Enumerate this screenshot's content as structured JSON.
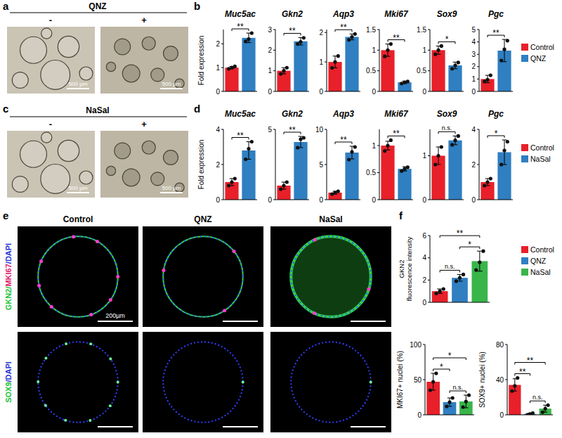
{
  "chart_data": [
    {
      "type": "bar",
      "title": "Muc5ac",
      "ylabel": "Fold expression",
      "categories": [
        "Control",
        "QNZ"
      ],
      "colors": [
        "#e8202a",
        "#2f7fc1"
      ],
      "values": [
        1.0,
        2.25
      ],
      "errors": [
        0.05,
        0.2
      ],
      "points": [
        [
          0.95,
          1.0,
          1.05
        ],
        [
          2.1,
          2.2,
          2.45
        ]
      ],
      "ylim": [
        0,
        2.6
      ],
      "yticks": [
        0,
        1,
        2
      ],
      "tick_labels": "y",
      "annotations": [
        {
          "text": "**",
          "from": "Control",
          "to": "QNZ"
        }
      ]
    },
    {
      "type": "bar",
      "title": "Gkn2",
      "categories": [
        "Control",
        "QNZ"
      ],
      "colors": [
        "#e8202a",
        "#2f7fc1"
      ],
      "values": [
        1.0,
        2.43
      ],
      "errors": [
        0.15,
        0.18
      ],
      "points": [
        [
          0.85,
          1.0,
          1.15
        ],
        [
          2.3,
          2.4,
          2.6
        ]
      ],
      "ylim": [
        0,
        3
      ],
      "yticks": [
        0,
        1,
        2,
        3
      ],
      "tick_labels": "y",
      "annotations": [
        {
          "text": "**",
          "from": "Control",
          "to": "QNZ"
        }
      ]
    },
    {
      "type": "bar",
      "title": "Aqp3",
      "categories": [
        "Control",
        "QNZ"
      ],
      "colors": [
        "#e8202a",
        "#2f7fc1"
      ],
      "values": [
        1.0,
        1.85
      ],
      "errors": [
        0.2,
        0.1
      ],
      "points": [
        [
          0.8,
          1.0,
          1.2
        ],
        [
          1.75,
          1.85,
          1.95
        ]
      ],
      "ylim": [
        0,
        2.1
      ],
      "yticks": [
        0,
        1,
        2
      ],
      "tick_labels": "y",
      "annotations": [
        {
          "text": "**",
          "from": "Control",
          "to": "QNZ"
        }
      ]
    },
    {
      "type": "bar",
      "title": "Mki67",
      "categories": [
        "Control",
        "QNZ"
      ],
      "colors": [
        "#e8202a",
        "#2f7fc1"
      ],
      "values": [
        1.0,
        0.22
      ],
      "errors": [
        0.15,
        0.03
      ],
      "points": [
        [
          0.85,
          1.0,
          1.15
        ],
        [
          0.19,
          0.22,
          0.24
        ]
      ],
      "ylim": [
        0,
        1.5
      ],
      "yticks": [
        0,
        0.5,
        1,
        1.5
      ],
      "tick_labels": "y",
      "annotations": [
        {
          "text": "**",
          "from": "Control",
          "to": "QNZ"
        }
      ]
    },
    {
      "type": "bar",
      "title": "Sox9",
      "categories": [
        "Control",
        "QNZ"
      ],
      "colors": [
        "#e8202a",
        "#2f7fc1"
      ],
      "values": [
        1.0,
        0.63
      ],
      "errors": [
        0.1,
        0.08
      ],
      "points": [
        [
          0.9,
          1.0,
          1.1
        ],
        [
          0.55,
          0.63,
          0.7
        ]
      ],
      "ylim": [
        0,
        1.5
      ],
      "yticks": [
        0,
        0.5,
        1,
        1.5
      ],
      "tick_labels": "y",
      "annotations": [
        {
          "text": "*",
          "from": "Control",
          "to": "QNZ"
        }
      ]
    },
    {
      "type": "bar",
      "title": "Pgc",
      "categories": [
        "Control",
        "QNZ"
      ],
      "colors": [
        "#e8202a",
        "#2f7fc1"
      ],
      "values": [
        1.0,
        3.3
      ],
      "errors": [
        0.3,
        0.9
      ],
      "points": [
        [
          0.8,
          0.95,
          1.3
        ],
        [
          2.5,
          3.4,
          4.1
        ]
      ],
      "ylim": [
        0,
        5
      ],
      "yticks": [
        0,
        1,
        2,
        3,
        4,
        5
      ],
      "tick_labels": "y",
      "legend": "right",
      "annotations": [
        {
          "text": "**",
          "from": "Control",
          "to": "QNZ"
        }
      ]
    },
    {
      "type": "bar",
      "title": "Muc5ac",
      "ylabel": "Fold expression",
      "categories": [
        "Control",
        "NaSal"
      ],
      "colors": [
        "#e8202a",
        "#2f7fc1"
      ],
      "values": [
        1.0,
        2.8
      ],
      "errors": [
        0.2,
        0.5
      ],
      "points": [
        [
          0.8,
          1.0,
          1.2
        ],
        [
          2.3,
          2.9,
          3.3
        ]
      ],
      "ylim": [
        0,
        4
      ],
      "yticks": [
        0,
        2,
        4
      ],
      "tick_labels": "y",
      "annotations": [
        {
          "text": "**",
          "from": "Control",
          "to": "NaSal"
        }
      ]
    },
    {
      "type": "bar",
      "title": "Gkn2",
      "categories": [
        "Control",
        "NaSal"
      ],
      "colors": [
        "#e8202a",
        "#2f7fc1"
      ],
      "values": [
        1.0,
        4.1
      ],
      "errors": [
        0.25,
        0.4
      ],
      "points": [
        [
          0.75,
          1.0,
          1.25
        ],
        [
          3.7,
          4.3,
          4.4
        ]
      ],
      "ylim": [
        0,
        5
      ],
      "yticks": [
        0,
        5
      ],
      "tick_labels": "y",
      "annotations": [
        {
          "text": "**",
          "from": "Control",
          "to": "NaSal"
        }
      ]
    },
    {
      "type": "bar",
      "title": "Aqp3",
      "categories": [
        "Control",
        "NaSal"
      ],
      "colors": [
        "#e8202a",
        "#2f7fc1"
      ],
      "values": [
        1.0,
        6.7
      ],
      "errors": [
        0.2,
        0.9
      ],
      "points": [
        [
          0.8,
          1.0,
          1.2
        ],
        [
          5.7,
          6.8,
          7.5
        ]
      ],
      "ylim": [
        0,
        10
      ],
      "yticks": [
        0,
        5,
        10
      ],
      "tick_labels": "y",
      "annotations": [
        {
          "text": "**",
          "from": "Control",
          "to": "NaSal"
        }
      ]
    },
    {
      "type": "bar",
      "title": "Mki67",
      "categories": [
        "Control",
        "NaSal"
      ],
      "colors": [
        "#e8202a",
        "#2f7fc1"
      ],
      "values": [
        1.0,
        0.57
      ],
      "errors": [
        0.08,
        0.04
      ],
      "points": [
        [
          0.9,
          1.0,
          1.1
        ],
        [
          0.53,
          0.57,
          0.6
        ]
      ],
      "ylim": [
        0,
        1.3
      ],
      "yticks": [
        0,
        0.5,
        1
      ],
      "tick_labels": "y",
      "annotations": [
        {
          "text": "**",
          "from": "Control",
          "to": "NaSal"
        }
      ]
    },
    {
      "type": "bar",
      "title": "Sox9",
      "categories": [
        "Control",
        "NaSal"
      ],
      "colors": [
        "#e8202a",
        "#2f7fc1"
      ],
      "values": [
        1.0,
        1.35
      ],
      "errors": [
        0.2,
        0.1
      ],
      "points": [
        [
          0.8,
          1.0,
          1.2
        ],
        [
          1.25,
          1.35,
          1.45
        ]
      ],
      "ylim": [
        0,
        1.6
      ],
      "yticks": [
        0,
        1
      ],
      "tick_labels": "y",
      "annotations": [
        {
          "text": "n.s.",
          "from": "Control",
          "to": "NaSal"
        }
      ]
    },
    {
      "type": "bar",
      "title": "Pgc",
      "categories": [
        "Control",
        "NaSal"
      ],
      "colors": [
        "#e8202a",
        "#2f7fc1"
      ],
      "values": [
        1.0,
        2.7
      ],
      "errors": [
        0.2,
        0.7
      ],
      "points": [
        [
          0.8,
          1.0,
          1.2
        ],
        [
          2.0,
          2.8,
          3.3
        ]
      ],
      "ylim": [
        0,
        4
      ],
      "yticks": [
        0,
        2,
        4
      ],
      "tick_labels": "y",
      "legend": "right",
      "annotations": [
        {
          "text": "*",
          "from": "Control",
          "to": "NaSal"
        }
      ]
    },
    {
      "type": "bar",
      "ylabel": [
        "GKN2",
        "fluorescence intensity"
      ],
      "categories": [
        "Control",
        "QNZ",
        "NaSal"
      ],
      "colors": [
        "#e8202a",
        "#2f7fc1",
        "#39b54a"
      ],
      "values": [
        1.0,
        2.2,
        3.7
      ],
      "errors": [
        0.2,
        0.3,
        0.9
      ],
      "points": [
        [
          0.8,
          1.0,
          1.2
        ],
        [
          1.9,
          2.2,
          2.5
        ],
        [
          2.9,
          3.6,
          4.6
        ]
      ],
      "ylim": [
        0,
        6
      ],
      "yticks": [
        0,
        2,
        4,
        6
      ],
      "tick_labels": "y",
      "legend": "right",
      "annotations": [
        {
          "text": "n.s.",
          "from": "Control",
          "to": "QNZ"
        },
        {
          "text": "*",
          "from": "QNZ",
          "to": "NaSal"
        },
        {
          "text": "**",
          "from": "Control",
          "to": "NaSal"
        }
      ]
    },
    {
      "type": "bar",
      "ylabel": "MKI67+ nuclei (%)",
      "categories": [
        "Control",
        "QNZ",
        "NaSal"
      ],
      "colors": [
        "#e8202a",
        "#2f7fc1",
        "#39b54a"
      ],
      "values": [
        47,
        18,
        19
      ],
      "errors": [
        12,
        6,
        9
      ],
      "points": [
        [
          35,
          47,
          59
        ],
        [
          12,
          18,
          24
        ],
        [
          11,
          19,
          28
        ]
      ],
      "ylim": [
        0,
        100
      ],
      "yticks": [
        0,
        50,
        100
      ],
      "tick_labels": "y",
      "annotations": [
        {
          "text": "*",
          "from": "Control",
          "to": "QNZ"
        },
        {
          "text": "n.s.",
          "from": "QNZ",
          "to": "NaSal"
        },
        {
          "text": "*",
          "from": "Control",
          "to": "NaSal"
        }
      ]
    },
    {
      "type": "bar",
      "ylabel": "SOX9+ nuclei (%)",
      "categories": [
        "Control",
        "QNZ",
        "NaSal"
      ],
      "colors": [
        "#e8202a",
        "#2f7fc1",
        "#39b54a"
      ],
      "values": [
        34,
        1,
        7
      ],
      "errors": [
        7,
        1,
        4
      ],
      "points": [
        [
          27,
          33,
          42
        ],
        [
          0,
          1,
          2
        ],
        [
          3,
          7,
          11
        ]
      ],
      "ylim": [
        0,
        80
      ],
      "yticks": [
        0,
        40,
        80
      ],
      "tick_labels": "y",
      "annotations": [
        {
          "text": "**",
          "from": "Control",
          "to": "QNZ"
        },
        {
          "text": "n.s.",
          "from": "QNZ",
          "to": "NaSal"
        },
        {
          "text": "**",
          "from": "Control",
          "to": "NaSal"
        }
      ]
    }
  ],
  "figure": {
    "panel_labels": [
      "a",
      "b",
      "c",
      "d",
      "e",
      "f"
    ],
    "brightfield": [
      {
        "title": "QNZ",
        "conditions": [
          "-",
          "+"
        ],
        "scale_bar": "500 µm"
      },
      {
        "title": "NaSal",
        "conditions": [
          "-",
          "+"
        ],
        "scale_bar": "500 µm"
      }
    ],
    "staining": {
      "columns": [
        "Control",
        "QNZ",
        "NaSal"
      ],
      "rows": [
        [
          {
            "text": "GKN2/",
            "color": "#22c33a"
          },
          {
            "text": "MKI67",
            "color": "#e0206a"
          },
          {
            "text": "/DAPI",
            "color": "#2a35d8"
          }
        ],
        [
          {
            "text": "SOX9",
            "color": "#22c33a"
          },
          {
            "text": "/DAPI",
            "color": "#2a35d8"
          }
        ]
      ],
      "scale_bar": "200µm"
    }
  }
}
